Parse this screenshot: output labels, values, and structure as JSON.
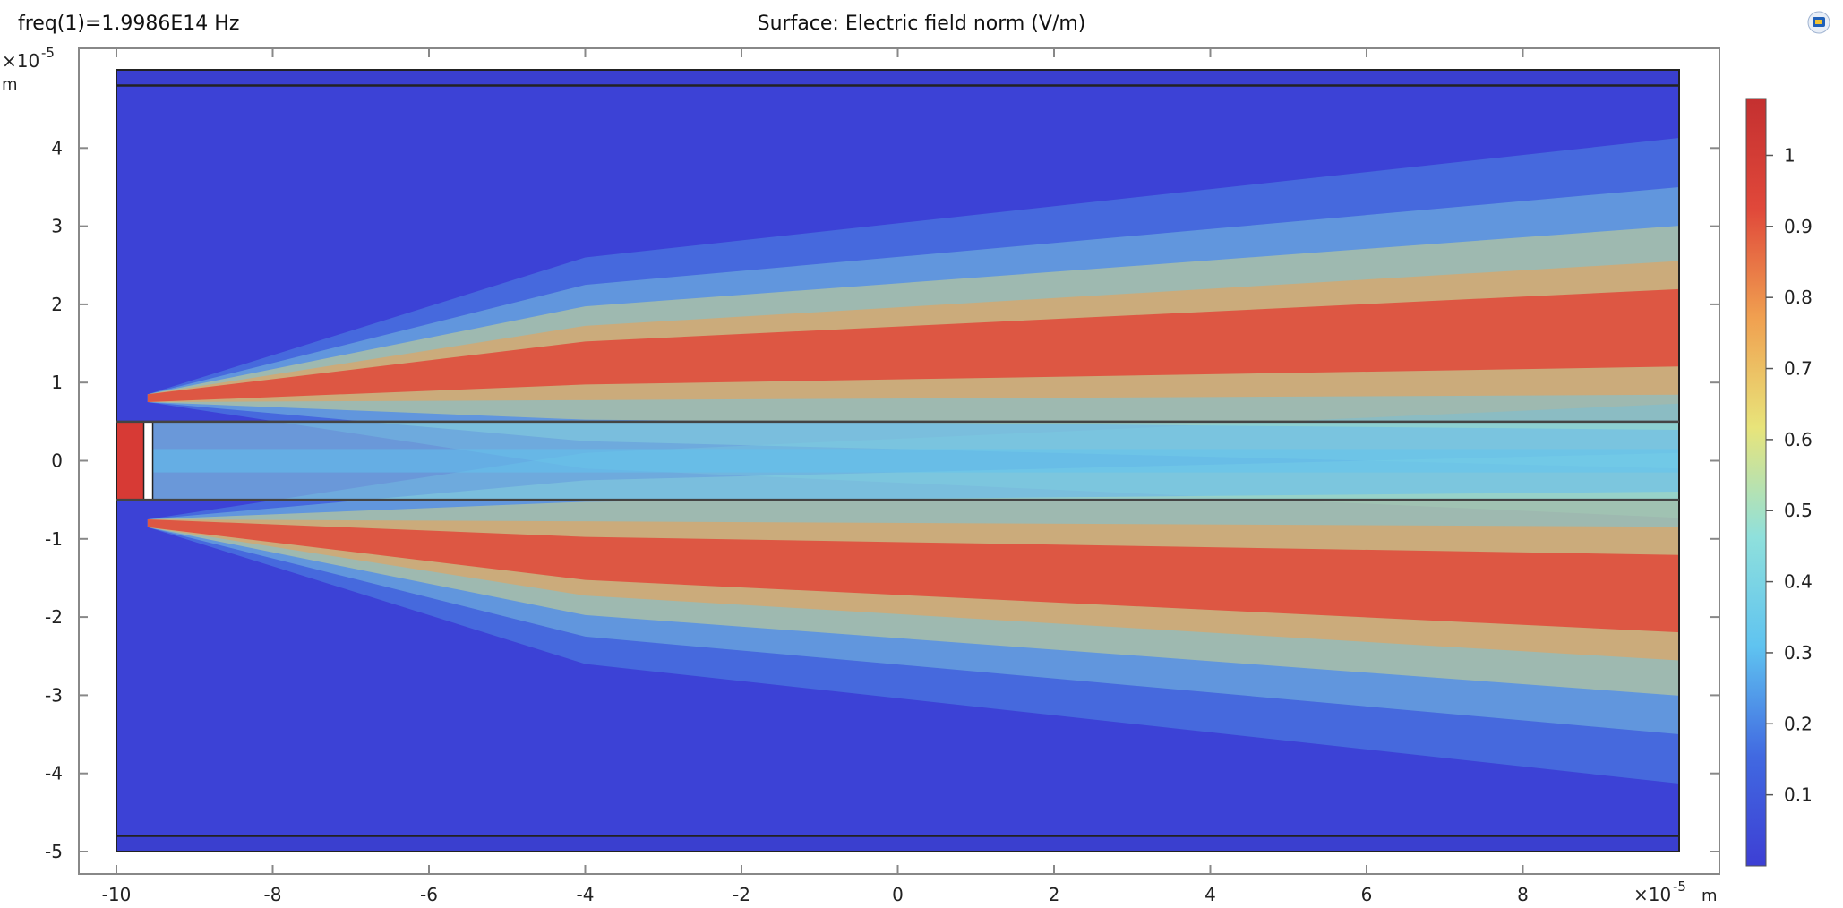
{
  "header": {
    "frequency_text": "freq(1)=1.9986E14 Hz",
    "title": "Surface: Electric field norm (V/m)"
  },
  "chart_data": {
    "type": "heatmap",
    "title": "Surface: Electric field norm (V/m)",
    "quantity": "Electric field norm",
    "unit": "V/m",
    "frequency": "1.9986E14 Hz",
    "x_axis": {
      "unit_label": "m",
      "multiplier": "×10",
      "exponent": "-5",
      "ticks": [
        -10,
        -8,
        -6,
        -4,
        -2,
        0,
        2,
        4,
        6,
        8
      ],
      "range": [
        -10,
        10
      ]
    },
    "y_axis": {
      "unit_label": "m",
      "multiplier": "×10",
      "exponent": "-5",
      "ticks": [
        -5,
        -4,
        -3,
        -2,
        -1,
        0,
        1,
        2,
        3,
        4
      ],
      "range": [
        -5.2,
        5.2
      ]
    },
    "domain": {
      "x": [
        -10,
        10
      ],
      "y": [
        -5,
        5
      ]
    },
    "boundaries": {
      "pml_lines_y": [
        4.8,
        -4.8
      ],
      "waveguide_core_y": [
        0.5,
        -0.5
      ],
      "source_x": -9.6
    },
    "beams": [
      {
        "center_y_start": 0.8,
        "center_y_end": 1.7,
        "peak_value": 1.0
      },
      {
        "center_y_start": -0.8,
        "center_y_end": -1.7,
        "peak_value": 1.0
      }
    ],
    "colorbar": {
      "min": 0,
      "max": 1.08,
      "ticks": [
        0.1,
        0.2,
        0.3,
        0.4,
        0.5,
        0.6,
        0.7,
        0.8,
        0.9,
        1
      ],
      "tick_labels": [
        "0.1",
        "0.2",
        "0.3",
        "0.4",
        "0.5",
        "0.6",
        "0.7",
        "0.8",
        "0.9",
        "1"
      ],
      "colormap": [
        "#3d3fd4",
        "#4169e1",
        "#5fc3f0",
        "#8fe0dc",
        "#e8e47a",
        "#f0a050",
        "#e0483a",
        "#c43030"
      ]
    }
  }
}
